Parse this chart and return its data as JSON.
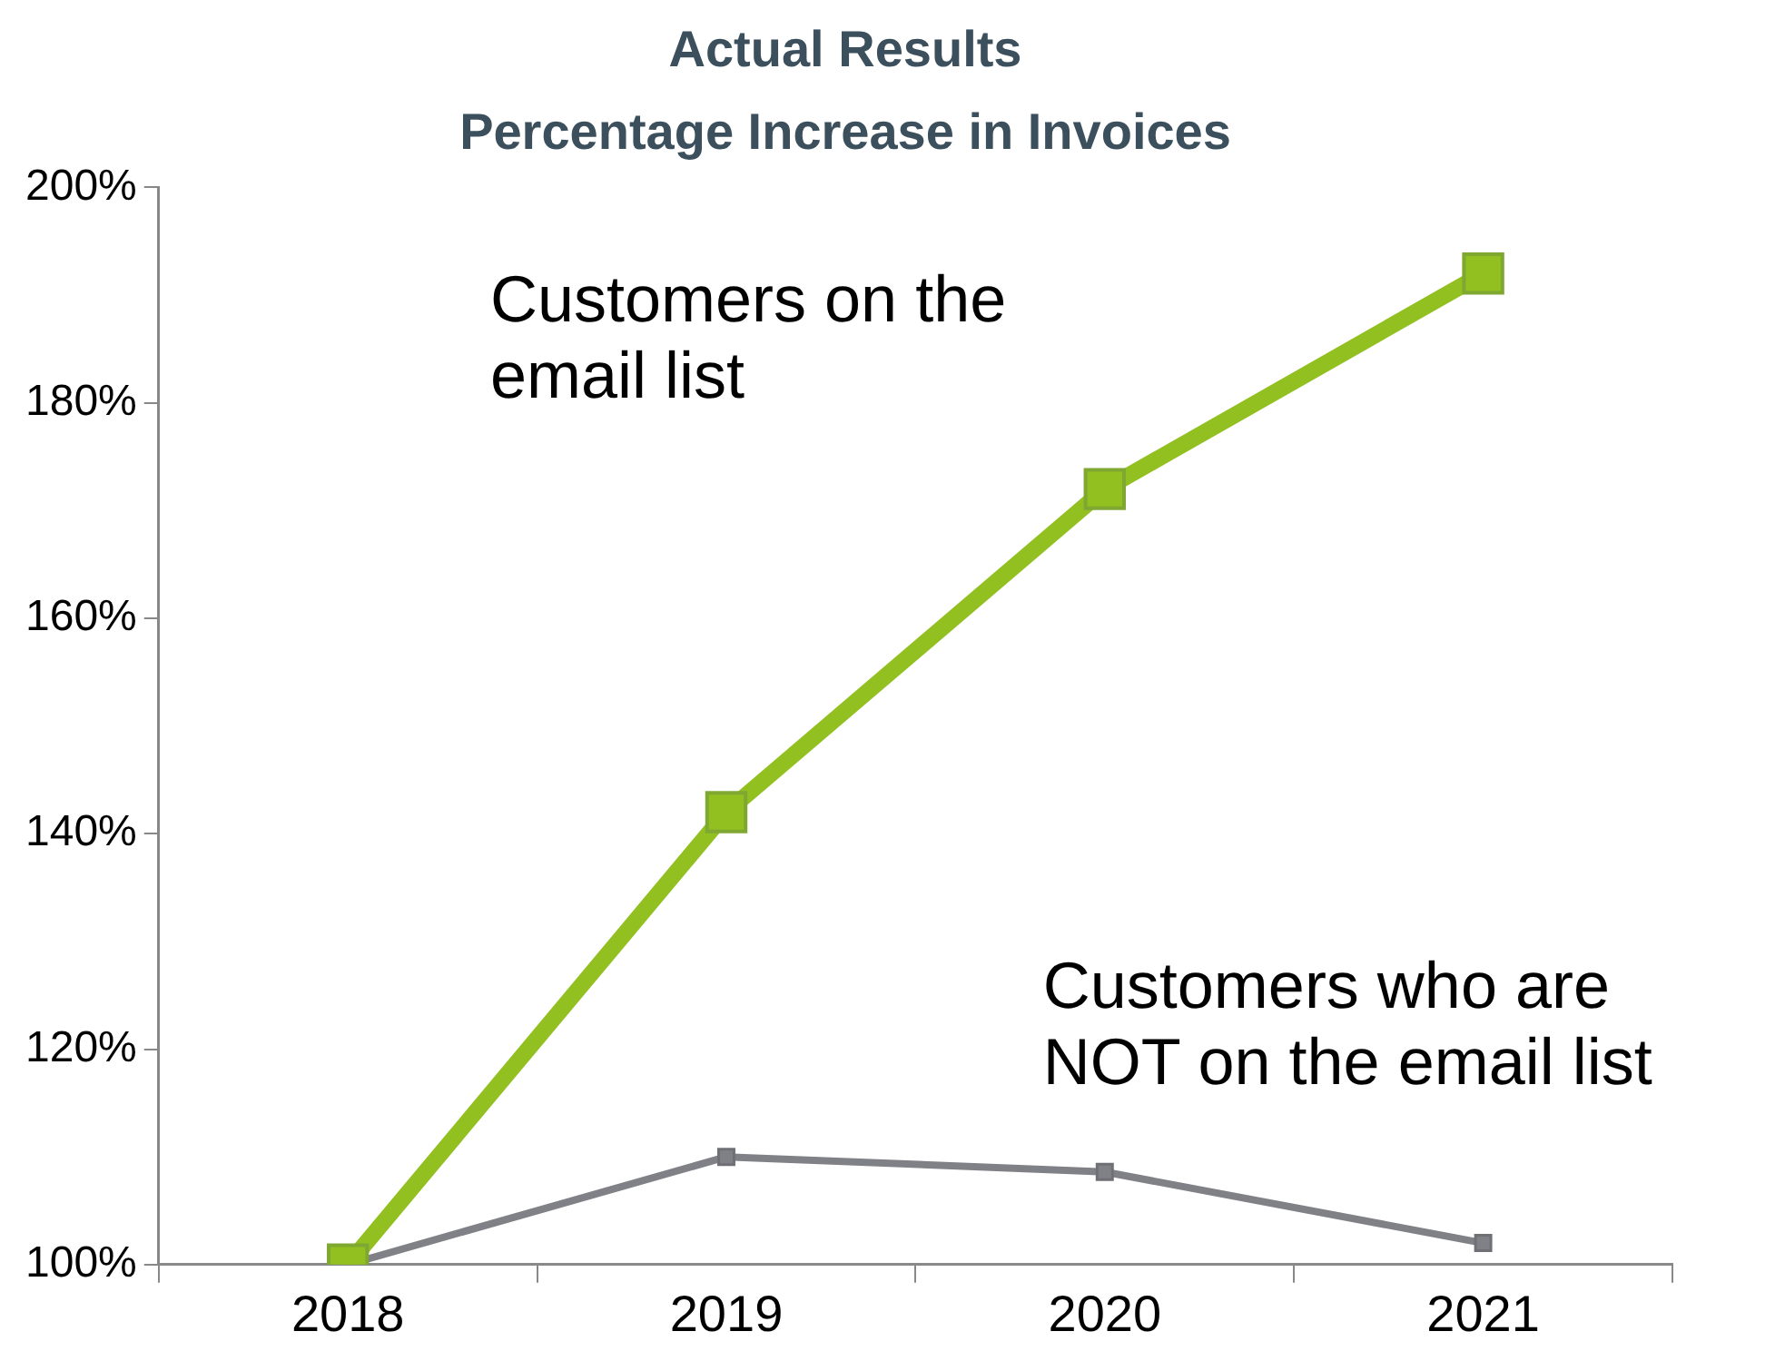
{
  "chart_data": {
    "type": "line",
    "title": "Actual Results",
    "subtitle": "Percentage Increase in Invoices",
    "categories": [
      "2018",
      "2019",
      "2020",
      "2021"
    ],
    "series": [
      {
        "name": "Customers on the email list",
        "color": "#92c020",
        "values": [
          100,
          142,
          172,
          192
        ]
      },
      {
        "name": "Customers who are NOT on the email list",
        "color": "#808087",
        "values": [
          100,
          110,
          108.6,
          102
        ]
      }
    ],
    "ylim": [
      100,
      200
    ],
    "yticks": [
      {
        "value": 100,
        "label": "100%"
      },
      {
        "value": 120,
        "label": "120%"
      },
      {
        "value": 140,
        "label": "140%"
      },
      {
        "value": 160,
        "label": "160%"
      },
      {
        "value": 180,
        "label": "180%"
      },
      {
        "value": 200,
        "label": "200%"
      }
    ],
    "grid": false,
    "legend": false,
    "marker": "square",
    "line_style": "solid"
  }
}
